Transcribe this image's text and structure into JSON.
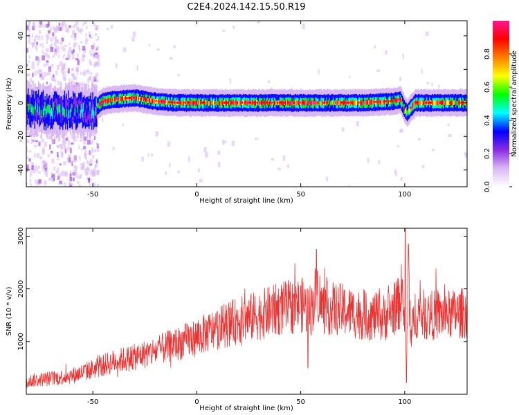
{
  "figure_title": "C2E4.2024.142.15.50.R19",
  "colors": {
    "snr_line": "#ee3333",
    "axes": "#000000",
    "background": "#ffffff"
  },
  "colormap_stops": [
    "#ffffff",
    "#d9b8f5",
    "#8a2be2",
    "#0000ff",
    "#00ffff",
    "#00ff00",
    "#ffff00",
    "#ff8000",
    "#ff0000",
    "#ff1493"
  ],
  "chart_data": [
    {
      "type": "heatmap",
      "title": "",
      "xlabel": "Height of straight line (km)",
      "ylabel": "Frequency (Hz)",
      "xlim": [
        -82,
        130
      ],
      "ylim": [
        -50,
        49
      ],
      "xticks": [
        "-50",
        "0",
        "50",
        "100"
      ],
      "yticks": [
        "-40",
        "-20",
        "0",
        "20",
        "40"
      ],
      "xtick_values": [
        -50,
        0,
        50,
        100
      ],
      "ytick_values": [
        -40,
        -20,
        0,
        20,
        40
      ],
      "colorbar": {
        "label": "Normalized spectral amplitude",
        "range": [
          0,
          1
        ],
        "ticks": [
          "0.0",
          "0.2",
          "0.4",
          "0.6",
          "0.8"
        ],
        "tick_values": [
          0.0,
          0.2,
          0.4,
          0.6,
          0.8
        ]
      },
      "ridge": {
        "description_values": "dominant frequency vs height",
        "x": [
          -82,
          -70,
          -60,
          -50,
          -48,
          -45,
          -40,
          -30,
          -20,
          -10,
          0,
          20,
          50,
          80,
          95,
          98,
          100,
          101,
          105,
          130
        ],
        "y": [
          -3,
          -5,
          -4,
          -5,
          -2,
          1,
          2,
          3,
          1,
          0,
          0,
          0,
          0,
          0,
          1,
          2,
          -4,
          -6,
          0,
          0
        ],
        "noisy_region_x": [
          -82,
          -48
        ]
      }
    },
    {
      "type": "line",
      "title": "",
      "xlabel": "Height of straight line (km)",
      "ylabel": "SNR (10 * v/v)",
      "xlim": [
        -82,
        130
      ],
      "ylim": [
        0,
        3150
      ],
      "xticks": [
        "-50",
        "0",
        "50",
        "100"
      ],
      "yticks": [
        "1000",
        "2000",
        "3000"
      ],
      "xtick_values": [
        -50,
        0,
        50,
        100
      ],
      "ytick_values": [
        1000,
        2000,
        3000
      ],
      "series": [
        {
          "x": [
            -82,
            -70,
            -60,
            -50,
            -40,
            -30,
            -20,
            -10,
            0,
            10,
            20,
            30,
            40,
            50,
            55,
            58,
            60,
            70,
            80,
            90,
            97,
            99,
            100,
            101,
            102,
            103,
            105,
            110,
            120,
            130
          ],
          "y": [
            250,
            300,
            350,
            480,
            620,
            700,
            820,
            950,
            1080,
            1250,
            1400,
            1500,
            1620,
            1700,
            1600,
            2000,
            1650,
            1600,
            1500,
            1450,
            1700,
            2000,
            1200,
            900,
            2200,
            1000,
            1550,
            1500,
            1500,
            1550
          ]
        }
      ],
      "spikes": [
        {
          "x": 100.2,
          "y": 3150
        },
        {
          "x": 100.8,
          "y": 220
        },
        {
          "x": 101.8,
          "y": 2850
        },
        {
          "x": 57.5,
          "y": 2750
        },
        {
          "x": 53.5,
          "y": 500
        }
      ]
    }
  ]
}
